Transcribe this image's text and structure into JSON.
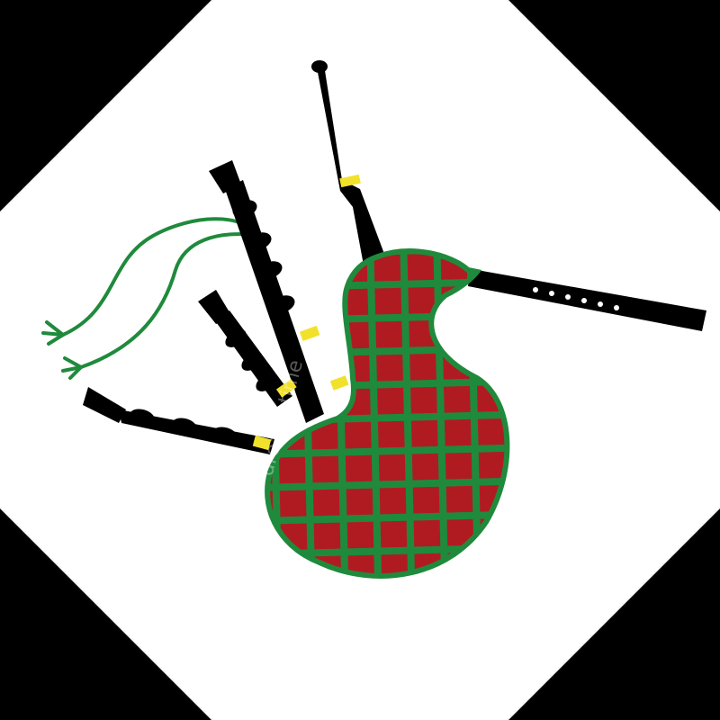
{
  "image": {
    "subject": "bagpipes",
    "watermark": "dreamstime"
  },
  "colors": {
    "background": "#ffffff",
    "corners": "#000000",
    "bag": "#b01b22",
    "tartan": "#1f8a3c",
    "pipes": "#000000",
    "ferrules": "#f2e12b",
    "cord": "#1f8a3c"
  }
}
